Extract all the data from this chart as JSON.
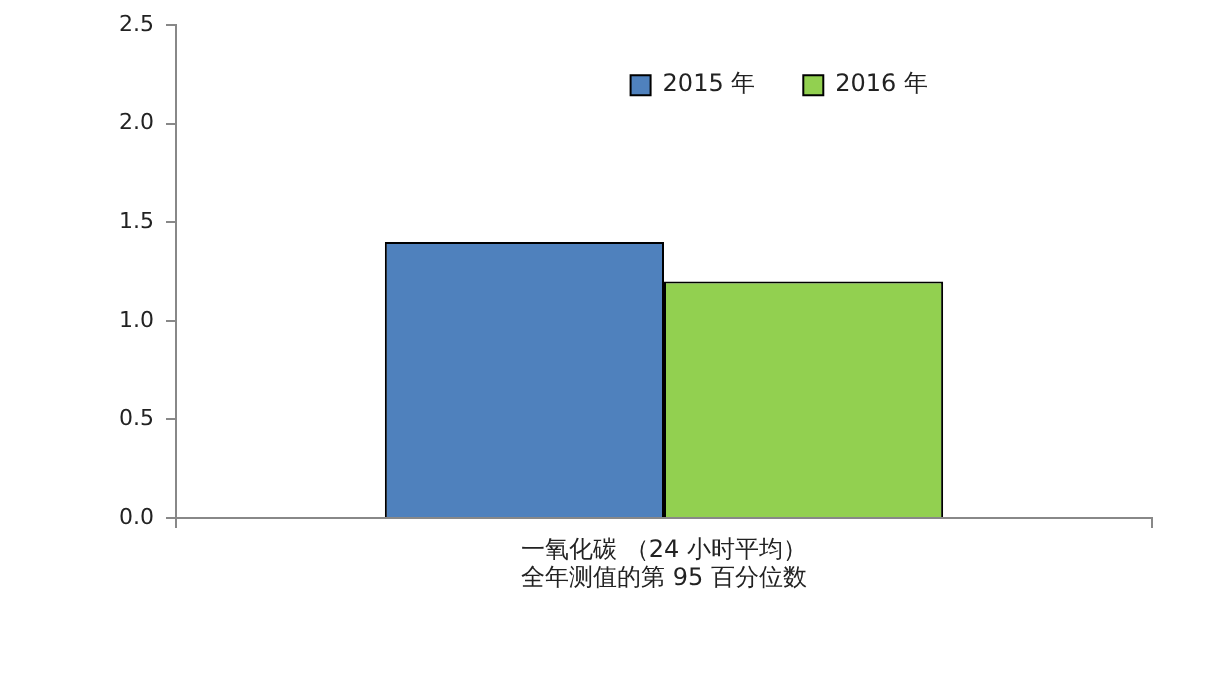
{
  "chart_data": {
    "type": "bar",
    "categories": [
      "一氧化碳 （24 小时平均）全年测值的第 95 百分位数"
    ],
    "series": [
      {
        "name": "2015 年",
        "color": "#4f81bd",
        "values": [
          1.4
        ]
      },
      {
        "name": "2016 年",
        "color": "#92d050",
        "values": [
          1.2
        ]
      }
    ],
    "ylim": [
      0,
      2.5
    ],
    "yticks": [
      {
        "value": 0,
        "label": "0.0"
      },
      {
        "value": 0.5,
        "label": "0.5"
      },
      {
        "value": 1,
        "label": "1.0"
      },
      {
        "value": 1.5,
        "label": "1.5"
      },
      {
        "value": 2,
        "label": "2.0"
      },
      {
        "value": 2.5,
        "label": "2.5"
      }
    ],
    "grid": false,
    "legend": "top right"
  }
}
